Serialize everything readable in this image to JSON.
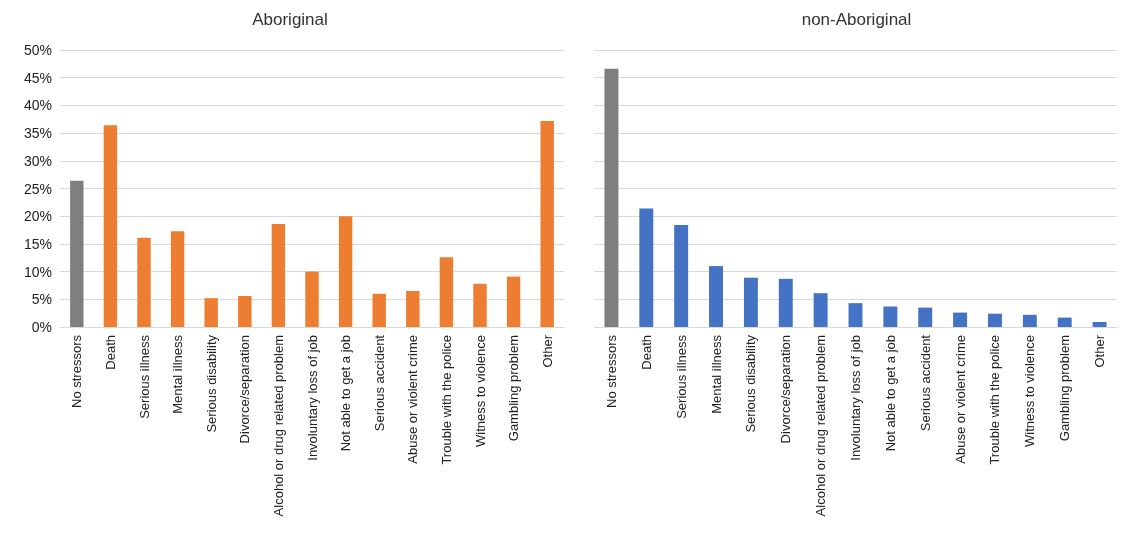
{
  "chart_data": [
    {
      "type": "bar",
      "title": "Aboriginal",
      "categories": [
        "No stressors",
        "Death",
        "Serious illness",
        "Mental illness",
        "Serious disability",
        "Divorce/separation",
        "Alcohol or drug related problem",
        "Involuntary loss of job",
        "Not able to get a job",
        "Serious accident",
        "Abuse or violent crime",
        "Trouble with the police",
        "Witness to violence",
        "Gambling problem",
        "Other"
      ],
      "values": [
        26.4,
        36.4,
        16.1,
        17.3,
        5.2,
        5.6,
        18.6,
        10.0,
        20.0,
        6.0,
        6.5,
        12.6,
        7.8,
        9.1,
        37.2
      ],
      "colors": [
        "#7f7f7f",
        "#ed7d31",
        "#ed7d31",
        "#ed7d31",
        "#ed7d31",
        "#ed7d31",
        "#ed7d31",
        "#ed7d31",
        "#ed7d31",
        "#ed7d31",
        "#ed7d31",
        "#ed7d31",
        "#ed7d31",
        "#ed7d31",
        "#ed7d31"
      ],
      "ylim": [
        0,
        50
      ],
      "yticks": [
        {
          "value": 0,
          "label": "0%"
        },
        {
          "value": 5,
          "label": "5%"
        },
        {
          "value": 10,
          "label": "10%"
        },
        {
          "value": 15,
          "label": "15%"
        },
        {
          "value": 20,
          "label": "20%"
        },
        {
          "value": 25,
          "label": "25%"
        },
        {
          "value": 30,
          "label": "30%"
        },
        {
          "value": 35,
          "label": "35%"
        },
        {
          "value": 40,
          "label": "40%"
        },
        {
          "value": 45,
          "label": "45%"
        },
        {
          "value": 50,
          "label": "50%"
        }
      ],
      "grid": "y"
    },
    {
      "type": "bar",
      "title": "non-Aboriginal",
      "categories": [
        "No stressors",
        "Death",
        "Serious illness",
        "Mental illness",
        "Serious disability",
        "Divorce/separation",
        "Alcohol or drug related problem",
        "Involuntary loss of job",
        "Not able to get a job",
        "Serious accident",
        "Abuse or violent crime",
        "Trouble with the police",
        "Witness to violence",
        "Gambling problem",
        "Other"
      ],
      "values": [
        46.6,
        21.4,
        18.4,
        11.0,
        8.9,
        8.7,
        6.1,
        4.3,
        3.7,
        3.5,
        2.6,
        2.4,
        2.2,
        1.7,
        0.9
      ],
      "colors": [
        "#7f7f7f",
        "#4472c4",
        "#4472c4",
        "#4472c4",
        "#4472c4",
        "#4472c4",
        "#4472c4",
        "#4472c4",
        "#4472c4",
        "#4472c4",
        "#4472c4",
        "#4472c4",
        "#4472c4",
        "#4472c4",
        "#4472c4"
      ],
      "ylim": [
        0,
        50
      ],
      "yticks": [
        {
          "value": 0,
          "label": null
        },
        {
          "value": 5,
          "label": null
        },
        {
          "value": 10,
          "label": null
        },
        {
          "value": 15,
          "label": null
        },
        {
          "value": 20,
          "label": null
        },
        {
          "value": 25,
          "label": null
        },
        {
          "value": 30,
          "label": null
        },
        {
          "value": 35,
          "label": null
        },
        {
          "value": 40,
          "label": null
        },
        {
          "value": 45,
          "label": null
        },
        {
          "value": 50,
          "label": null
        }
      ],
      "grid": "y",
      "tick_labels": "x"
    }
  ]
}
